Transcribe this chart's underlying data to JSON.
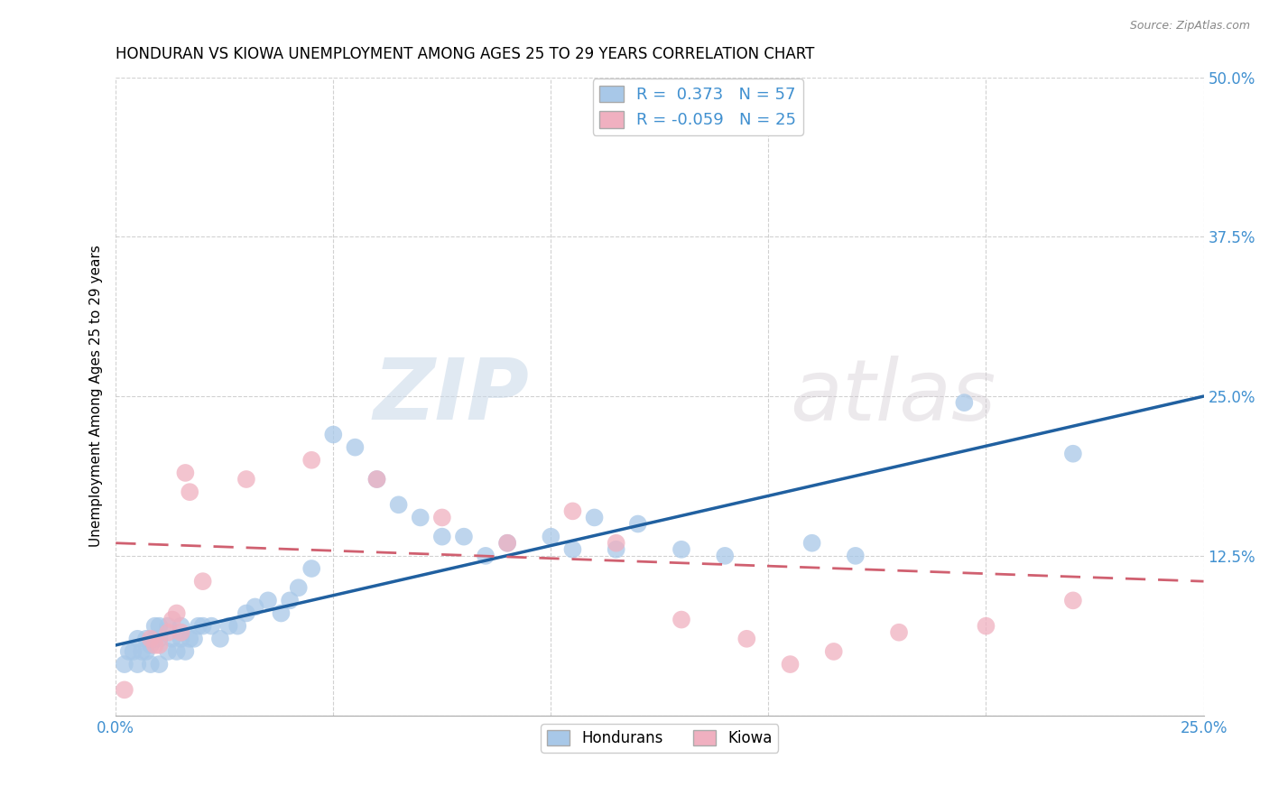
{
  "title": "HONDURAN VS KIOWA UNEMPLOYMENT AMONG AGES 25 TO 29 YEARS CORRELATION CHART",
  "source": "Source: ZipAtlas.com",
  "ylabel": "Unemployment Among Ages 25 to 29 years",
  "xlim": [
    0,
    0.25
  ],
  "ylim": [
    0,
    0.5
  ],
  "xticks": [
    0.0,
    0.05,
    0.1,
    0.15,
    0.2,
    0.25
  ],
  "yticks": [
    0.0,
    0.125,
    0.25,
    0.375,
    0.5
  ],
  "blue_color": "#A8C8E8",
  "pink_color": "#F0B0C0",
  "blue_line_color": "#2060A0",
  "pink_line_color": "#D06070",
  "legend_R_blue": "R =  0.373",
  "legend_N_blue": "N = 57",
  "legend_R_pink": "R = -0.059",
  "legend_N_pink": "N = 25",
  "watermark_zip": "ZIP",
  "watermark_atlas": "atlas",
  "background_color": "#ffffff",
  "grid_color": "#cccccc",
  "blue_x": [
    0.002,
    0.003,
    0.004,
    0.005,
    0.005,
    0.006,
    0.007,
    0.007,
    0.008,
    0.008,
    0.009,
    0.009,
    0.01,
    0.01,
    0.01,
    0.012,
    0.012,
    0.013,
    0.014,
    0.015,
    0.015,
    0.016,
    0.017,
    0.018,
    0.019,
    0.02,
    0.022,
    0.024,
    0.026,
    0.028,
    0.03,
    0.032,
    0.035,
    0.038,
    0.04,
    0.042,
    0.045,
    0.05,
    0.055,
    0.06,
    0.065,
    0.07,
    0.075,
    0.08,
    0.085,
    0.09,
    0.1,
    0.105,
    0.11,
    0.115,
    0.12,
    0.13,
    0.14,
    0.16,
    0.17,
    0.195,
    0.22
  ],
  "blue_y": [
    0.04,
    0.05,
    0.05,
    0.06,
    0.04,
    0.05,
    0.05,
    0.06,
    0.04,
    0.055,
    0.06,
    0.07,
    0.04,
    0.06,
    0.07,
    0.05,
    0.07,
    0.06,
    0.05,
    0.06,
    0.07,
    0.05,
    0.06,
    0.06,
    0.07,
    0.07,
    0.07,
    0.06,
    0.07,
    0.07,
    0.08,
    0.085,
    0.09,
    0.08,
    0.09,
    0.1,
    0.115,
    0.22,
    0.21,
    0.185,
    0.165,
    0.155,
    0.14,
    0.14,
    0.125,
    0.135,
    0.14,
    0.13,
    0.155,
    0.13,
    0.15,
    0.13,
    0.125,
    0.135,
    0.125,
    0.245,
    0.205
  ],
  "pink_x": [
    0.002,
    0.008,
    0.009,
    0.01,
    0.012,
    0.013,
    0.014,
    0.015,
    0.016,
    0.017,
    0.02,
    0.03,
    0.045,
    0.06,
    0.075,
    0.09,
    0.105,
    0.115,
    0.13,
    0.145,
    0.155,
    0.165,
    0.18,
    0.2,
    0.22
  ],
  "pink_y": [
    0.02,
    0.06,
    0.055,
    0.055,
    0.065,
    0.075,
    0.08,
    0.065,
    0.19,
    0.175,
    0.105,
    0.185,
    0.2,
    0.185,
    0.155,
    0.135,
    0.16,
    0.135,
    0.075,
    0.06,
    0.04,
    0.05,
    0.065,
    0.07,
    0.09
  ],
  "blue_intercept": 0.055,
  "blue_slope": 0.78,
  "pink_intercept": 0.135,
  "pink_slope": -0.12
}
